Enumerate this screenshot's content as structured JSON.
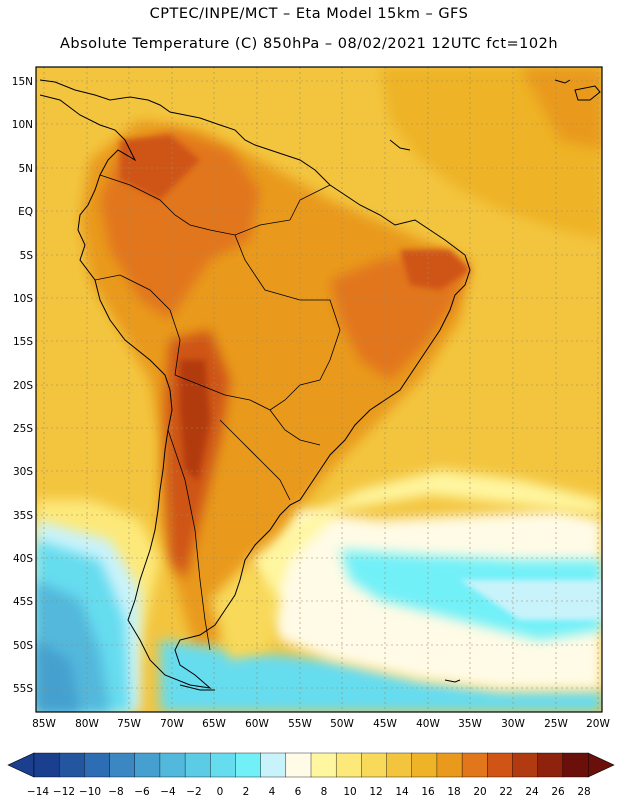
{
  "header": {
    "line1": "CPTEC/INPE/MCT –  Eta Model 15km – GFS",
    "line2": "Absolute Temperature (C) 850hPa – 08/02/2021 12UTC fct=102h"
  },
  "map": {
    "lat_labels": [
      "15N",
      "10N",
      "5N",
      "EQ",
      "5S",
      "10S",
      "15S",
      "20S",
      "25S",
      "30S",
      "35S",
      "40S",
      "45S",
      "50S",
      "55S"
    ],
    "lon_labels": [
      "85W",
      "80W",
      "75W",
      "70W",
      "65W",
      "60W",
      "55W",
      "50W",
      "45W",
      "40W",
      "35W",
      "30W",
      "25W",
      "20W"
    ]
  },
  "colorbar": {
    "labels": [
      "-14",
      "-12",
      "-10",
      "-8",
      "-6",
      "-4",
      "-2",
      "0",
      "2",
      "4",
      "6",
      "8",
      "10",
      "12",
      "14",
      "16",
      "18",
      "20",
      "22",
      "24",
      "26",
      "28"
    ],
    "colors": [
      "#1a3f8f",
      "#2456a0",
      "#2d6db3",
      "#3a87c2",
      "#45a0cf",
      "#52b8dc",
      "#5ccbe6",
      "#66dcef",
      "#72f0f8",
      "#c9f3fb",
      "#fffbe6",
      "#fff6a0",
      "#fde97a",
      "#f8d95a",
      "#f3c53f",
      "#eeb327",
      "#e99a1c",
      "#e2761a",
      "#cf5416",
      "#b23a10",
      "#8e220d",
      "#6b0f0a"
    ]
  }
}
